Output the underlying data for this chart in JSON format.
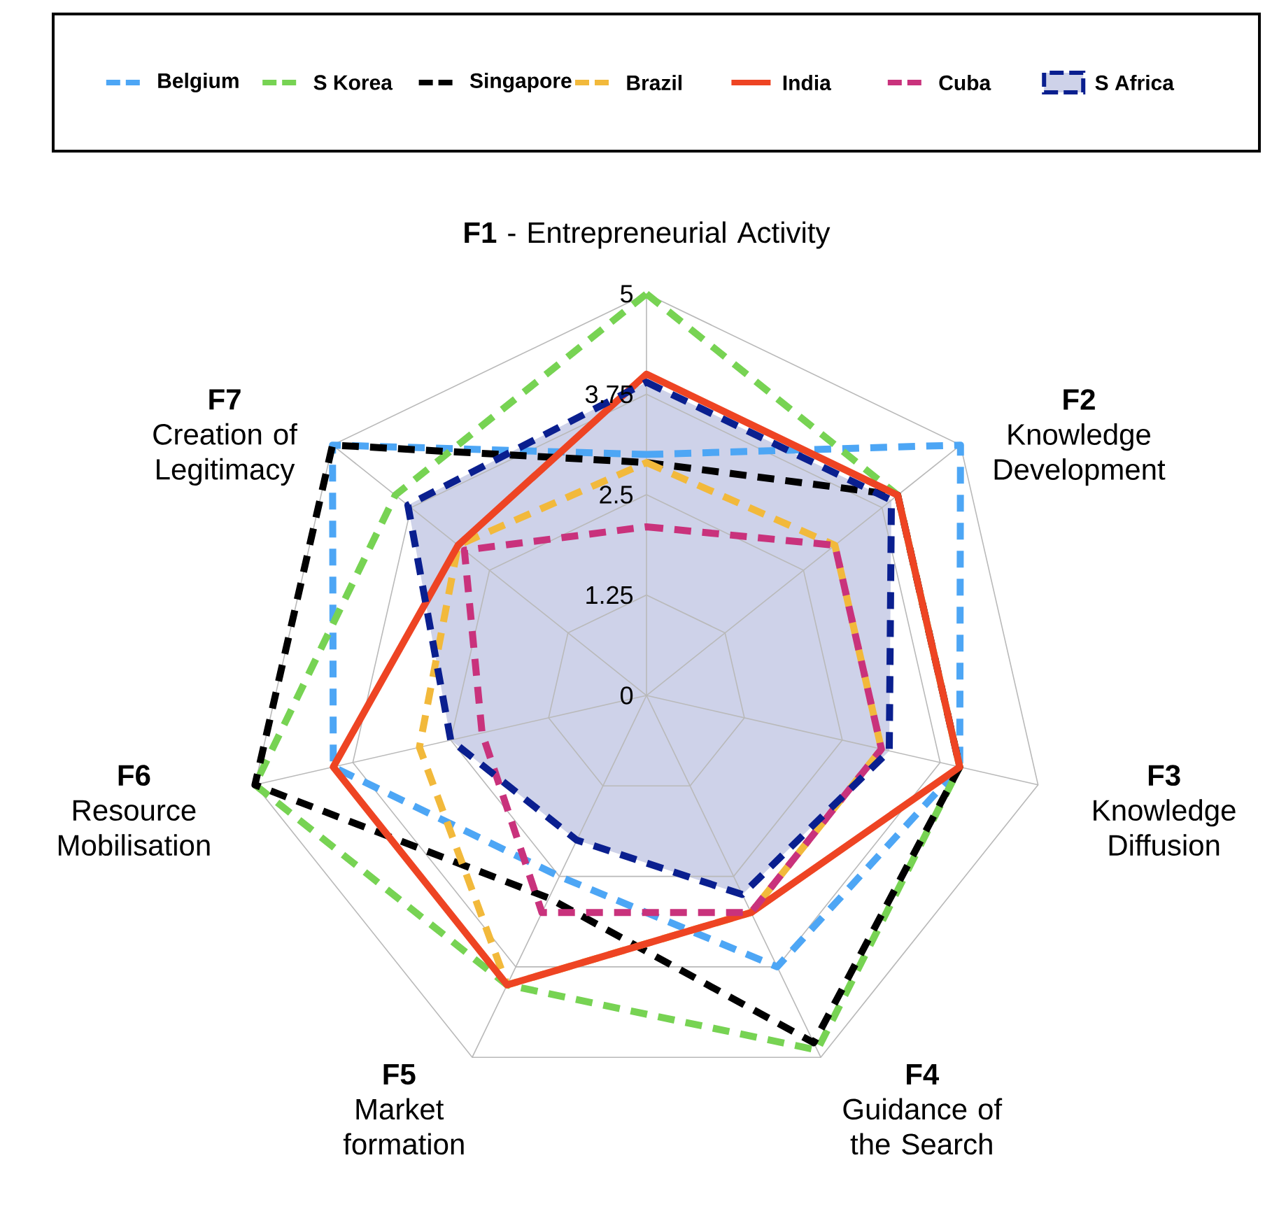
{
  "chart_data": {
    "type": "radar",
    "categories": [
      "**F1** - Entrepreneurial Activity",
      "**F2** Knowledge Development",
      "**F3** Knowledge Diffusion",
      "**F4** Guidance of the Search",
      "**F5** Market formation",
      "**F6** Resource Mobilisation",
      "**F7** Creation of Legitimacy"
    ],
    "ylim": [
      0,
      5
    ],
    "yticks": [
      0,
      1.25,
      2.5,
      3.75,
      5
    ],
    "grid": true,
    "legend": "top",
    "series": [
      {
        "name": "Belgium",
        "color": "#4da6f5",
        "line_style": "dashed",
        "values": [
          3,
          5,
          4,
          3.75,
          2.5,
          4,
          5
        ]
      },
      {
        "name": "S Korea",
        "color": "#77d353",
        "line_style": "dashed",
        "values": [
          5,
          4,
          4,
          4.9,
          4,
          5,
          4
        ]
      },
      {
        "name": "Singapore",
        "color": "#000000",
        "line_style": "dashed",
        "values": [
          2.9,
          4,
          4,
          4.8,
          2.8,
          5,
          5
        ]
      },
      {
        "name": "Brazil",
        "color": "#f2b93b",
        "line_style": "dashed",
        "values": [
          2.9,
          3,
          3,
          3,
          4,
          2.9,
          3
        ]
      },
      {
        "name": "India",
        "color": "#ee4423",
        "line_style": "solid",
        "values": [
          4,
          4,
          4,
          3,
          4,
          4,
          3
        ]
      },
      {
        "name": "Cuba",
        "color": "#c9327c",
        "line_style": "dashed",
        "values": [
          2.1,
          3,
          3,
          3,
          3,
          2.1,
          2.9
        ]
      },
      {
        "name": "S Africa",
        "color": "#0a1f8f",
        "line_style": "dashed",
        "type": "area",
        "values": [
          3.9,
          3.9,
          3.1,
          2.75,
          2,
          2.5,
          3.8
        ]
      }
    ]
  }
}
